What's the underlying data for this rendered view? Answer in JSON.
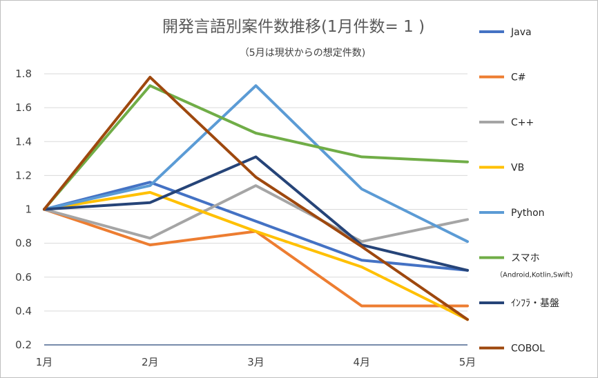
{
  "chart_data": {
    "type": "line",
    "title": "開発言語別案件数推移(1月件数= 1 )",
    "subtitle": "（5月は現状からの想定件数)",
    "xlabel": "",
    "ylabel": "",
    "categories": [
      "1月",
      "2月",
      "3月",
      "4月",
      "5月"
    ],
    "ylim": [
      0.2,
      1.8
    ],
    "yticks": [
      "0.2",
      "0.4",
      "0.6",
      "0.8",
      "1",
      "1.2",
      "1.4",
      "1.6",
      "1.8"
    ],
    "grid": true,
    "legend_position": "right",
    "series": [
      {
        "name": "Java",
        "color": "#4472C4",
        "values": [
          1.0,
          1.16,
          0.93,
          0.7,
          0.64
        ]
      },
      {
        "name": "C#",
        "color": "#ED7D31",
        "values": [
          1.0,
          0.79,
          0.87,
          0.43,
          0.43
        ]
      },
      {
        "name": "C++",
        "color": "#A5A5A5",
        "values": [
          1.0,
          0.83,
          1.14,
          0.81,
          0.94
        ]
      },
      {
        "name": "VB",
        "color": "#FFC000",
        "values": [
          1.0,
          1.1,
          0.87,
          0.66,
          0.35
        ]
      },
      {
        "name": "Python",
        "color": "#5B9BD5",
        "values": [
          1.0,
          1.14,
          1.73,
          1.12,
          0.81
        ]
      },
      {
        "name": "スマホ",
        "sub": "（Android,Kotlin,Swift)",
        "color": "#70AD47",
        "values": [
          1.0,
          1.73,
          1.45,
          1.31,
          1.28
        ]
      },
      {
        "name": "ｲﾝﾌﾗ・基盤",
        "color": "#264478",
        "values": [
          1.0,
          1.04,
          1.31,
          0.79,
          0.64
        ]
      },
      {
        "name": "COBOL",
        "color": "#9E480E",
        "values": [
          1.0,
          1.78,
          1.19,
          0.78,
          0.35
        ]
      }
    ]
  }
}
